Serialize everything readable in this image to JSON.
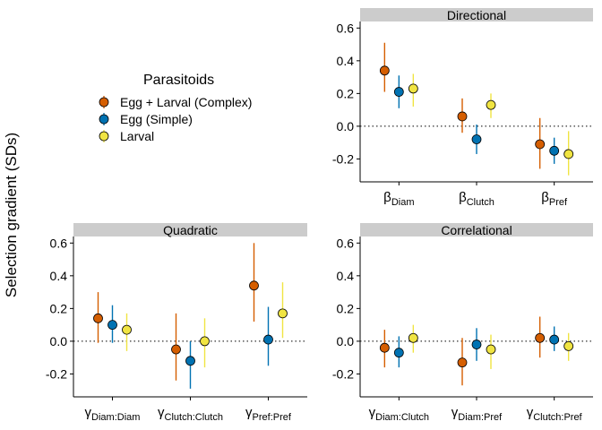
{
  "figure": {
    "ylabel": "Selection gradient (SDs)"
  },
  "legend": {
    "title": "Parasitoids",
    "entries": [
      {
        "label": "Egg + Larval (Complex)",
        "color": "#D55E00"
      },
      {
        "label": "Egg (Simple)",
        "color": "#0072B2"
      },
      {
        "label": "Larval",
        "color": "#F0E442"
      }
    ]
  },
  "chart_data": [
    {
      "type": "scatter",
      "panel": "Directional",
      "title": "Directional",
      "categories": [
        {
          "sym": "β",
          "sub": "Diam"
        },
        {
          "sym": "β",
          "sub": "Clutch"
        },
        {
          "sym": "β",
          "sub": "Pref"
        }
      ],
      "ylim": [
        -0.34,
        0.64
      ],
      "yticks": [
        "0.6",
        "0.4",
        "0.2",
        "0.0",
        "-0.2"
      ],
      "ytick_values": [
        0.6,
        0.4,
        0.2,
        0.0,
        -0.2
      ],
      "reference_line": 0,
      "series": [
        {
          "name": "Egg + Larval (Complex)",
          "color": "#D55E00",
          "values": [
            0.34,
            0.06,
            -0.11
          ],
          "lower": [
            0.21,
            -0.04,
            -0.26
          ],
          "upper": [
            0.51,
            0.17,
            0.05
          ]
        },
        {
          "name": "Egg (Simple)",
          "color": "#0072B2",
          "values": [
            0.21,
            -0.08,
            -0.15
          ],
          "lower": [
            0.11,
            -0.17,
            -0.23
          ],
          "upper": [
            0.31,
            0.01,
            -0.07
          ]
        },
        {
          "name": "Larval",
          "color": "#F0E442",
          "values": [
            0.23,
            0.13,
            -0.17
          ],
          "lower": [
            0.12,
            0.05,
            -0.3
          ],
          "upper": [
            0.32,
            0.2,
            -0.03
          ]
        }
      ]
    },
    {
      "type": "scatter",
      "panel": "Quadratic",
      "title": "Quadratic",
      "categories": [
        {
          "sym": "γ",
          "sub": "Diam:Diam"
        },
        {
          "sym": "γ",
          "sub": "Clutch:Clutch"
        },
        {
          "sym": "γ",
          "sub": "Pref:Pref"
        }
      ],
      "ylim": [
        -0.34,
        0.64
      ],
      "yticks": [
        "0.6",
        "0.4",
        "0.2",
        "0.0",
        "-0.2"
      ],
      "ytick_values": [
        0.6,
        0.4,
        0.2,
        0.0,
        -0.2
      ],
      "reference_line": 0,
      "series": [
        {
          "name": "Egg + Larval (Complex)",
          "color": "#D55E00",
          "values": [
            0.14,
            -0.05,
            0.34
          ],
          "lower": [
            -0.01,
            -0.24,
            0.12
          ],
          "upper": [
            0.3,
            0.17,
            0.6
          ]
        },
        {
          "name": "Egg (Simple)",
          "color": "#0072B2",
          "values": [
            0.1,
            -0.12,
            0.01
          ],
          "lower": [
            -0.01,
            -0.29,
            -0.15
          ],
          "upper": [
            0.22,
            0.0,
            0.21
          ]
        },
        {
          "name": "Larval",
          "color": "#F0E442",
          "values": [
            0.07,
            0.0,
            0.17
          ],
          "lower": [
            -0.06,
            -0.16,
            0.02
          ],
          "upper": [
            0.17,
            0.14,
            0.36
          ]
        }
      ]
    },
    {
      "type": "scatter",
      "panel": "Correlational",
      "title": "Correlational",
      "categories": [
        {
          "sym": "γ",
          "sub": "Diam:Clutch"
        },
        {
          "sym": "γ",
          "sub": "Diam:Pref"
        },
        {
          "sym": "γ",
          "sub": "Clutch:Pref"
        }
      ],
      "ylim": [
        -0.34,
        0.64
      ],
      "yticks": [
        "0.6",
        "0.4",
        "0.2",
        "0.0",
        "-0.2"
      ],
      "ytick_values": [
        0.6,
        0.4,
        0.2,
        0.0,
        -0.2
      ],
      "reference_line": 0,
      "series": [
        {
          "name": "Egg + Larval (Complex)",
          "color": "#D55E00",
          "values": [
            -0.04,
            -0.13,
            0.02
          ],
          "lower": [
            -0.16,
            -0.27,
            -0.1
          ],
          "upper": [
            0.07,
            0.02,
            0.15
          ]
        },
        {
          "name": "Egg (Simple)",
          "color": "#0072B2",
          "values": [
            -0.07,
            -0.02,
            0.01
          ],
          "lower": [
            -0.16,
            -0.12,
            -0.06
          ],
          "upper": [
            0.03,
            0.08,
            0.09
          ]
        },
        {
          "name": "Larval",
          "color": "#F0E442",
          "values": [
            0.02,
            -0.05,
            -0.03
          ],
          "lower": [
            -0.07,
            -0.17,
            -0.12
          ],
          "upper": [
            0.1,
            0.04,
            0.05
          ]
        }
      ]
    }
  ]
}
